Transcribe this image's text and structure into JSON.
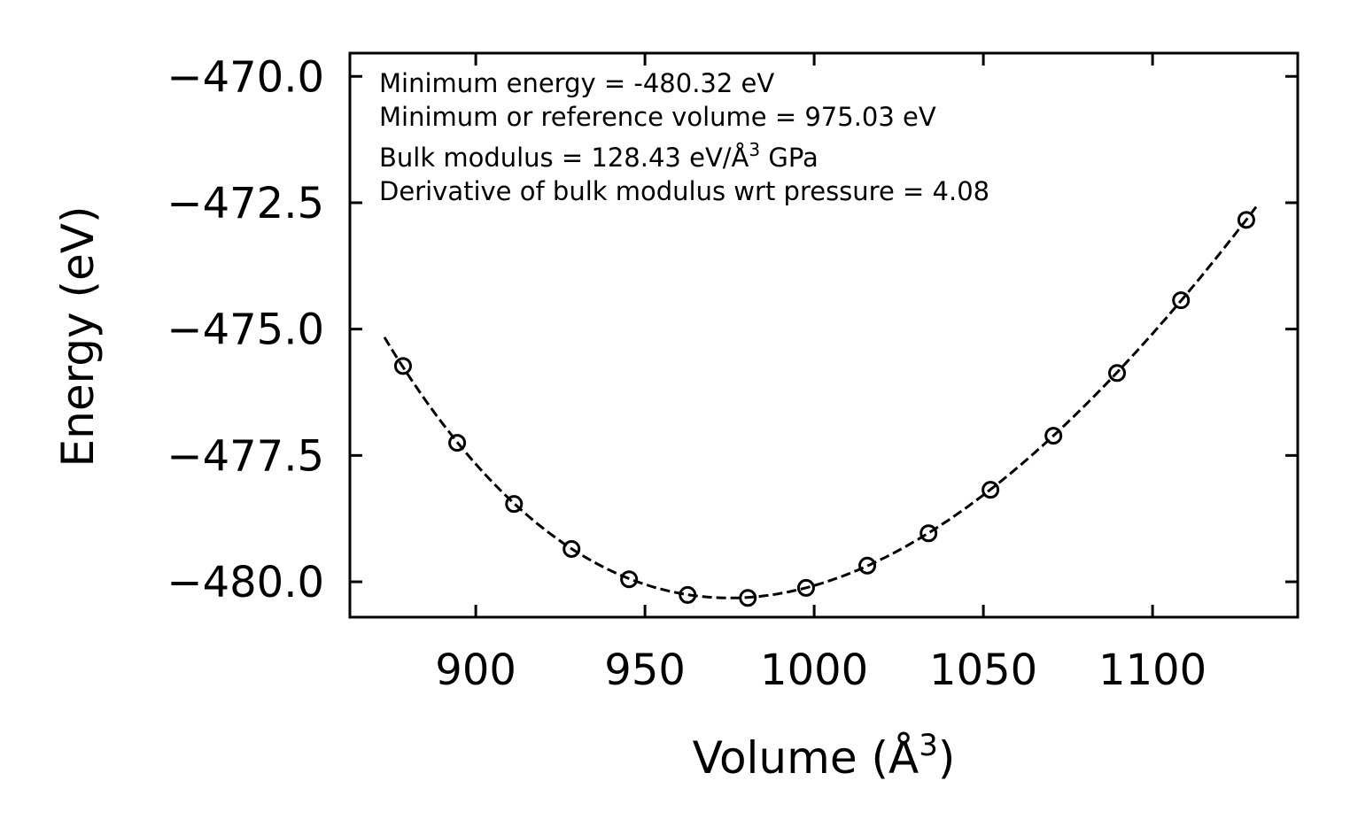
{
  "chart_data": {
    "type": "scatter",
    "title": "",
    "xlabel": {
      "text": "Volume (Å",
      "sup": "3",
      "tail": ")"
    },
    "ylabel": "Energy (eV)",
    "xlim": [
      862.8,
      1142.9
    ],
    "ylim": [
      -480.7,
      -469.54
    ],
    "xticks": [
      900,
      950,
      1000,
      1050,
      1100
    ],
    "xtick_labels": [
      "900",
      "950",
      "1000",
      "1050",
      "1100"
    ],
    "yticks": [
      -470.0,
      -472.5,
      -475.0,
      -477.5,
      -480.0
    ],
    "ytick_labels": [
      "−470.0",
      "−472.5",
      "−475.0",
      "−477.5",
      "−480.0"
    ],
    "grid": false,
    "series": [
      {
        "name": "data",
        "marker": "open-circle",
        "color": "#000000",
        "x": [
          878.5,
          894.5,
          911.3,
          928.3,
          945.3,
          962.6,
          980.4,
          997.6,
          1015.7,
          1033.8,
          1052.1,
          1070.7,
          1089.5,
          1108.4,
          1127.7
        ],
        "y": [
          -475.73,
          -477.25,
          -478.46,
          -479.35,
          -479.95,
          -480.26,
          -480.32,
          -480.12,
          -479.68,
          -479.04,
          -478.18,
          -477.11,
          -475.87,
          -474.43,
          -472.84
        ]
      },
      {
        "name": "fit",
        "style": "dashed",
        "color": "#000000",
        "model": "birch-murnaghan",
        "x_range": [
          873,
          1131
        ],
        "params": {
          "E0": -480.32,
          "V0": 975.03,
          "B0_GPa": 128.43,
          "B0_prime": 4.08
        }
      }
    ],
    "annotations": [
      {
        "text": "Minimum energy = -480.32 eV"
      },
      {
        "text": "Minimum or reference volume = 975.03 eV"
      },
      {
        "text": "Bulk modulus = 128.43 eV/Å",
        "sup": "3",
        "tail": " GPa"
      },
      {
        "text": "Derivative of bulk modulus wrt pressure = 4.08"
      }
    ]
  }
}
